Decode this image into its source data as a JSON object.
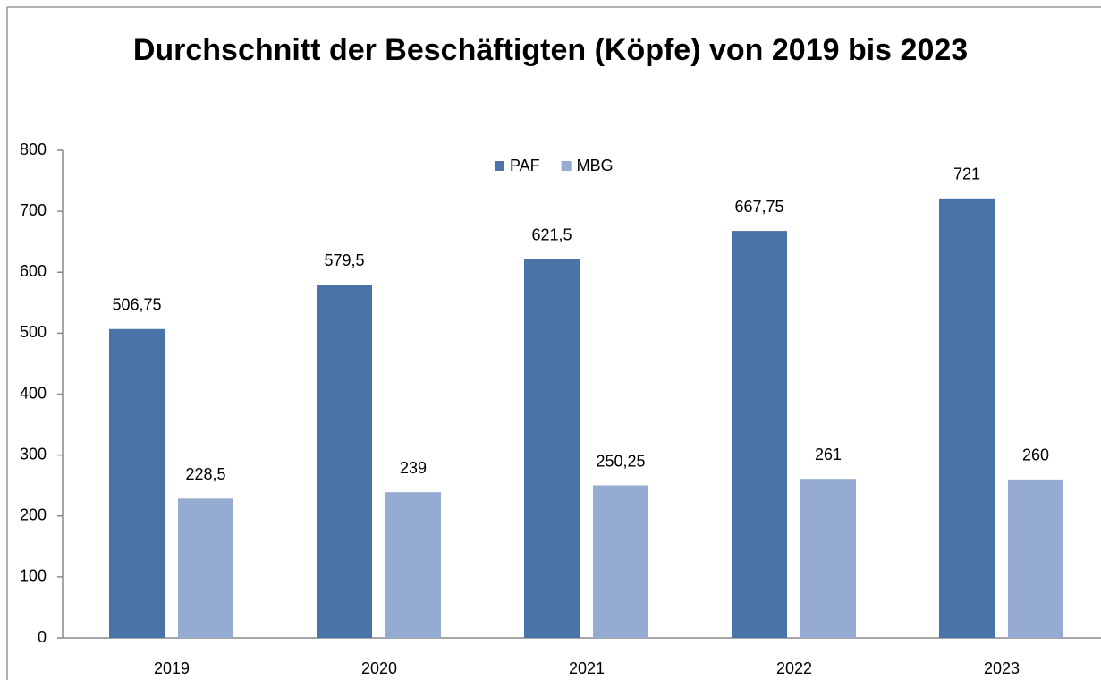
{
  "chart_data": {
    "type": "bar",
    "title": "Durchschnitt der Beschäftigten (Köpfe) von 2019 bis 2023",
    "categories": [
      "2019",
      "2020",
      "2021",
      "2022",
      "2023"
    ],
    "series": [
      {
        "name": "PAF",
        "color": "#4a73a8",
        "values": [
          506.75,
          579.5,
          621.5,
          667.75,
          721
        ],
        "value_labels": [
          "506,75",
          "579,5",
          "621,5",
          "667,75",
          "721"
        ]
      },
      {
        "name": "MBG",
        "color": "#96abd1",
        "values": [
          228.5,
          239,
          250.25,
          261,
          260
        ],
        "value_labels": [
          "228,5",
          "239",
          "250,25",
          "261",
          "260"
        ]
      }
    ],
    "ylim": [
      0,
      800
    ],
    "yticks": [
      0,
      100,
      200,
      300,
      400,
      500,
      600,
      700,
      800
    ],
    "grid": false,
    "legend": "top"
  }
}
